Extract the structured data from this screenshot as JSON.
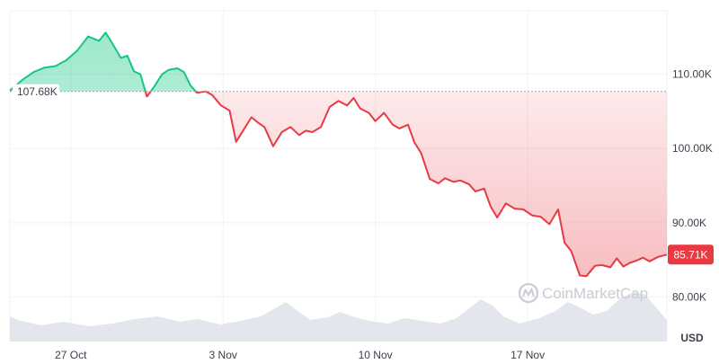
{
  "watermark": "CoinMarketCap",
  "colors": {
    "up": "#16c784",
    "down": "#ea3943",
    "grid": "#eff2f5",
    "baseline": "#a1a7bb",
    "volume": "#e3e6ec",
    "text": "#3a3f4a"
  },
  "chart_data": {
    "type": "area",
    "x_ticks": [
      "27 Oct",
      "3 Nov",
      "10 Nov",
      "17 Nov"
    ],
    "x_tick_days": [
      27,
      34,
      41,
      48
    ],
    "x_range": [
      24.2,
      54.4
    ],
    "y_ticks": [
      "110.00K",
      "100.00K",
      "90.00K",
      "80.00K"
    ],
    "y_tick_values": [
      110000,
      100000,
      90000,
      80000
    ],
    "ylim": [
      74000,
      120000
    ],
    "unit": "USD",
    "baseline": {
      "value": 107680,
      "label": "107.68K"
    },
    "current": {
      "value": 85710,
      "label": "85.71K"
    },
    "grid": true,
    "series": [
      {
        "x": [
          24.2,
          24.8,
          25.3,
          25.8,
          26.3,
          26.8,
          27.3,
          27.8,
          28.3,
          28.6,
          28.9,
          29.3,
          29.6,
          29.9,
          30.2,
          30.5,
          30.8,
          31.2,
          31.5,
          31.9,
          32.2,
          32.5,
          32.8,
          33.2,
          33.5,
          33.9,
          34.3,
          34.6,
          34.9,
          35.3,
          35.6,
          35.9,
          36.3,
          36.7,
          37.1,
          37.5,
          37.8,
          38.1,
          38.5,
          38.9,
          39.3,
          39.7,
          40.0,
          40.3,
          40.7,
          41.0,
          41.4,
          41.8,
          42.1,
          42.5,
          42.8,
          43.1,
          43.5,
          43.9,
          44.2,
          44.6,
          44.9,
          45.3,
          45.6,
          46.0,
          46.3,
          46.6,
          47.0,
          47.4,
          47.8,
          48.2,
          48.6,
          49.0,
          49.4,
          49.7,
          50.0,
          50.4,
          50.7,
          51.1,
          51.4,
          51.8,
          52.1,
          52.4,
          52.7,
          53.0,
          53.3,
          53.6,
          54.0,
          54.4
        ],
        "values": [
          107800,
          109300,
          110300,
          110900,
          111100,
          111900,
          113200,
          115100,
          114500,
          115600,
          114200,
          112200,
          112500,
          110400,
          110000,
          107000,
          108200,
          110000,
          110600,
          110800,
          110300,
          108500,
          107500,
          107700,
          107200,
          105800,
          105100,
          100900,
          102300,
          104200,
          103500,
          102900,
          100300,
          102200,
          102900,
          101800,
          102400,
          102200,
          102900,
          105600,
          106400,
          105800,
          106800,
          105400,
          104800,
          103700,
          104800,
          103200,
          102700,
          103200,
          100800,
          99400,
          95900,
          95300,
          96000,
          95500,
          95700,
          95200,
          94200,
          94600,
          92200,
          90700,
          92600,
          91900,
          91800,
          91000,
          90800,
          89800,
          91800,
          87300,
          86200,
          82900,
          82800,
          84200,
          84300,
          84000,
          85200,
          84100,
          84600,
          84900,
          85300,
          84800,
          85400,
          85710
        ]
      }
    ]
  }
}
